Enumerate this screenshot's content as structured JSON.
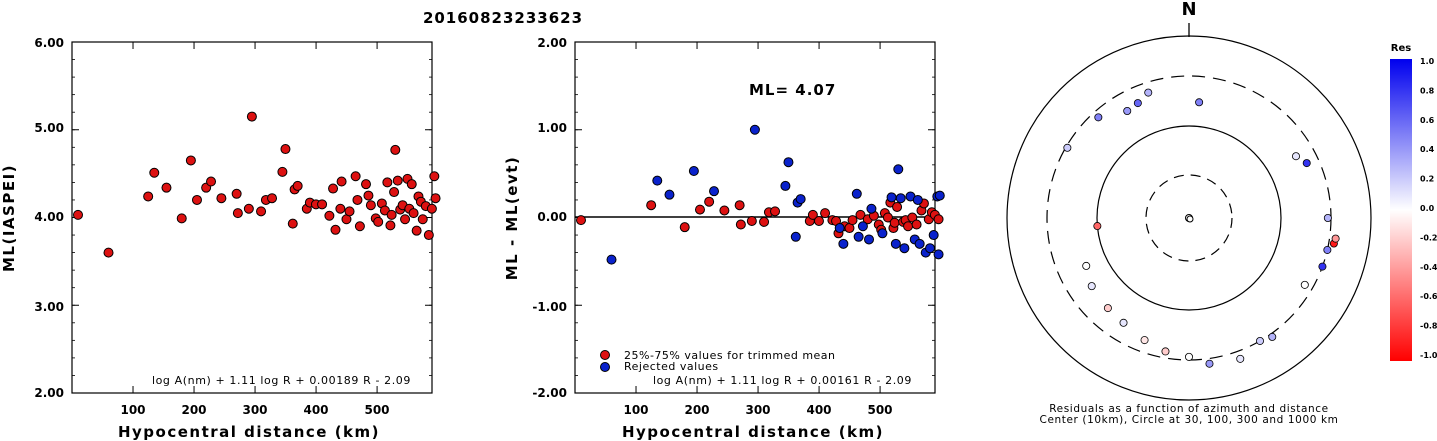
{
  "title": "20160823233623",
  "colors": {
    "station_red": "#dd1111",
    "station_blue": "#0a22cc",
    "axis": "#000000"
  },
  "chart_data": [
    {
      "type": "scatter",
      "ylabel": "ML(IASPEI)",
      "xlabel": "Hypocentral distance (km)",
      "xlim": [
        0,
        590
      ],
      "ylim": [
        2.0,
        6.0
      ],
      "x_ticks": [
        "100",
        "200",
        "300",
        "400",
        "500"
      ],
      "x_tick_values": [
        100,
        200,
        300,
        400,
        500
      ],
      "y_ticks": [
        "2.00",
        "3.00",
        "4.00",
        "5.00",
        "6.00"
      ],
      "y_tick_values": [
        2,
        3,
        4,
        5,
        6
      ],
      "formula": "log A(nm) + 1.11 log R + 0.00189 R - 2.09",
      "points": [
        [
          0,
          4.03
        ],
        [
          50,
          3.6
        ],
        [
          115,
          4.24
        ],
        [
          125,
          4.51
        ],
        [
          145,
          4.34
        ],
        [
          170,
          3.99
        ],
        [
          185,
          4.65
        ],
        [
          195,
          4.2
        ],
        [
          210,
          4.34
        ],
        [
          218,
          4.41
        ],
        [
          235,
          4.22
        ],
        [
          260,
          4.27
        ],
        [
          262,
          4.05
        ],
        [
          280,
          4.1
        ],
        [
          285,
          5.15
        ],
        [
          300,
          4.07
        ],
        [
          308,
          4.2
        ],
        [
          318,
          4.22
        ],
        [
          335,
          4.52
        ],
        [
          340,
          4.78
        ],
        [
          352,
          3.93
        ],
        [
          355,
          4.32
        ],
        [
          360,
          4.36
        ],
        [
          375,
          4.1
        ],
        [
          380,
          4.17
        ],
        [
          390,
          4.15
        ],
        [
          400,
          4.15
        ],
        [
          412,
          4.02
        ],
        [
          418,
          4.33
        ],
        [
          422,
          3.86
        ],
        [
          430,
          4.1
        ],
        [
          432,
          4.41
        ],
        [
          440,
          3.98
        ],
        [
          445,
          4.07
        ],
        [
          455,
          4.47
        ],
        [
          458,
          4.2
        ],
        [
          462,
          3.9
        ],
        [
          472,
          4.38
        ],
        [
          476,
          4.25
        ],
        [
          480,
          4.14
        ],
        [
          488,
          3.99
        ],
        [
          492,
          3.95
        ],
        [
          498,
          4.16
        ],
        [
          503,
          4.08
        ],
        [
          507,
          4.4
        ],
        [
          512,
          3.91
        ],
        [
          514,
          4.03
        ],
        [
          518,
          4.29
        ],
        [
          520,
          4.77
        ],
        [
          524,
          4.42
        ],
        [
          528,
          4.09
        ],
        [
          532,
          4.14
        ],
        [
          536,
          3.98
        ],
        [
          540,
          4.44
        ],
        [
          543,
          4.1
        ],
        [
          547,
          4.38
        ],
        [
          550,
          4.05
        ],
        [
          555,
          3.85
        ],
        [
          558,
          4.24
        ],
        [
          562,
          4.18
        ],
        [
          565,
          3.98
        ],
        [
          570,
          4.13
        ],
        [
          575,
          3.8
        ],
        [
          580,
          4.1
        ],
        [
          584,
          4.47
        ],
        [
          586,
          4.22
        ]
      ]
    },
    {
      "type": "scatter",
      "ylabel": "ML - ML(evt)",
      "xlabel": "Hypocentral distance (km)",
      "xlim": [
        0,
        590
      ],
      "ylim": [
        -2.0,
        2.0
      ],
      "x_ticks": [
        "100",
        "200",
        "300",
        "400",
        "500"
      ],
      "x_tick_values": [
        100,
        200,
        300,
        400,
        500
      ],
      "y_ticks": [
        "-2.00",
        "-1.00",
        "0.00",
        "1.00",
        "2.00"
      ],
      "y_tick_values": [
        -2,
        -1,
        0,
        1,
        2
      ],
      "annotation": "ML= 4.07",
      "reference_line": 0.0,
      "legend": [
        "25%-75% values for trimmed mean",
        "Rejected values"
      ],
      "formula": "log A(nm) + 1.11 log R + 0.00161 R - 2.09",
      "points_trimmed": [
        [
          0,
          -0.03
        ],
        [
          115,
          0.14
        ],
        [
          170,
          -0.11
        ],
        [
          195,
          0.09
        ],
        [
          210,
          0.18
        ],
        [
          235,
          0.08
        ],
        [
          260,
          0.14
        ],
        [
          262,
          -0.08
        ],
        [
          280,
          -0.04
        ],
        [
          300,
          -0.05
        ],
        [
          308,
          0.06
        ],
        [
          318,
          0.07
        ],
        [
          375,
          -0.04
        ],
        [
          380,
          0.03
        ],
        [
          390,
          -0.04
        ],
        [
          400,
          0.05
        ],
        [
          412,
          -0.03
        ],
        [
          418,
          -0.04
        ],
        [
          422,
          -0.18
        ],
        [
          432,
          -0.1
        ],
        [
          440,
          -0.12
        ],
        [
          445,
          -0.03
        ],
        [
          458,
          0.03
        ],
        [
          470,
          -0.02
        ],
        [
          480,
          0.02
        ],
        [
          488,
          -0.08
        ],
        [
          492,
          -0.14
        ],
        [
          498,
          0.05
        ],
        [
          503,
          0.0
        ],
        [
          507,
          0.17
        ],
        [
          512,
          -0.12
        ],
        [
          514,
          -0.06
        ],
        [
          518,
          0.12
        ],
        [
          528,
          -0.05
        ],
        [
          532,
          -0.03
        ],
        [
          536,
          -0.1
        ],
        [
          543,
          0.0
        ],
        [
          550,
          -0.08
        ],
        [
          558,
          0.08
        ],
        [
          562,
          0.16
        ],
        [
          570,
          -0.02
        ],
        [
          575,
          0.06
        ],
        [
          580,
          0.03
        ],
        [
          586,
          -0.02
        ]
      ],
      "points_rejected": [
        [
          50,
          -0.48
        ],
        [
          125,
          0.42
        ],
        [
          145,
          0.26
        ],
        [
          185,
          0.53
        ],
        [
          218,
          0.3
        ],
        [
          285,
          1.0
        ],
        [
          335,
          0.36
        ],
        [
          340,
          0.63
        ],
        [
          352,
          -0.22
        ],
        [
          355,
          0.17
        ],
        [
          360,
          0.21
        ],
        [
          424,
          -0.12
        ],
        [
          430,
          -0.3
        ],
        [
          452,
          0.27
        ],
        [
          455,
          -0.22
        ],
        [
          462,
          -0.1
        ],
        [
          472,
          -0.25
        ],
        [
          476,
          0.1
        ],
        [
          494,
          -0.18
        ],
        [
          509,
          0.23
        ],
        [
          516,
          -0.3
        ],
        [
          520,
          0.55
        ],
        [
          524,
          0.22
        ],
        [
          530,
          -0.35
        ],
        [
          540,
          0.24
        ],
        [
          547,
          -0.25
        ],
        [
          552,
          0.2
        ],
        [
          555,
          -0.3
        ],
        [
          565,
          -0.4
        ],
        [
          572,
          -0.35
        ],
        [
          578,
          -0.2
        ],
        [
          584,
          0.24
        ],
        [
          586,
          -0.42
        ],
        [
          588,
          0.25
        ]
      ]
    },
    {
      "type": "scatter",
      "subtype": "polar",
      "north_label": "N",
      "caption_line1": "Residuals as a function of azimuth and distance",
      "caption_line2": "Center (10km), Circle at 30, 100, 300 and 1000 km",
      "colorbar_title": "Res",
      "colorbar_ticks": [
        "1.0",
        "0.8",
        "0.6",
        "0.4",
        "0.2",
        "0.0",
        "-0.2",
        "-0.4",
        "-0.6",
        "-0.8",
        "-1.0"
      ],
      "colorbar_range": [
        -1.0,
        1.0
      ],
      "stations_azimuth_deg_distance_km_residual": [
        [
          5,
          170,
          0.5
        ],
        [
          330,
          200,
          0.4
        ],
        [
          336,
          210,
          0.6
        ],
        [
          342,
          240,
          0.3
        ],
        [
          318,
          260,
          0.5
        ],
        [
          300,
          290,
          0.2
        ],
        [
          265,
          100,
          -0.6
        ],
        [
          245,
          160,
          0.0
        ],
        [
          235,
          180,
          0.1
        ],
        [
          222,
          190,
          -0.2
        ],
        [
          212,
          200,
          0.1
        ],
        [
          200,
          230,
          -0.1
        ],
        [
          190,
          260,
          -0.2
        ],
        [
          180,
          280,
          0.0
        ],
        [
          172,
          350,
          0.4
        ],
        [
          160,
          380,
          0.1
        ],
        [
          150,
          300,
          0.2
        ],
        [
          145,
          330,
          0.3
        ],
        [
          120,
          250,
          0.0
        ],
        [
          110,
          300,
          0.8
        ],
        [
          103,
          300,
          0.5
        ],
        [
          100,
          350,
          -0.9
        ],
        [
          98,
          360,
          -0.4
        ],
        [
          90,
          280,
          0.3
        ],
        [
          65,
          230,
          0.8
        ],
        [
          60,
          200,
          0.1
        ]
      ]
    }
  ]
}
